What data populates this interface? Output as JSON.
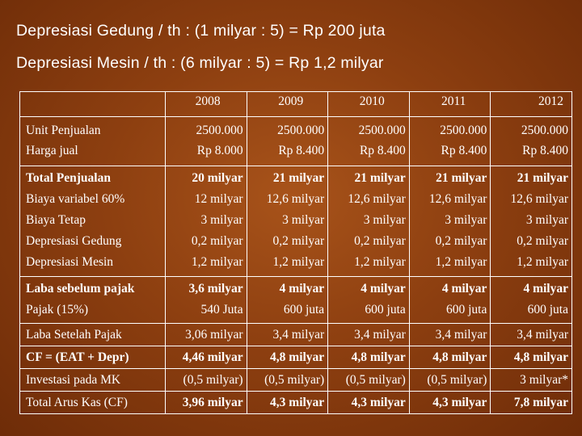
{
  "headings": {
    "line1": "Depresiasi Gedung / th :  (1 milyar : 5) = Rp 200 juta",
    "line2": "Depresiasi Mesin / th : (6 milyar : 5) = Rp 1,2 milyar"
  },
  "table": {
    "years": [
      "2008",
      "2009",
      "2010",
      "2011",
      "2012"
    ],
    "unit_row": {
      "labels": [
        "Unit Penjualan",
        "Harga jual"
      ],
      "values": [
        [
          "2500.000",
          "Rp 8.000"
        ],
        [
          "2500.000",
          "Rp 8.400"
        ],
        [
          "2500.000",
          "Rp 8.400"
        ],
        [
          "2500.000",
          "Rp 8.400"
        ],
        [
          "2500.000",
          "Rp 8.400"
        ]
      ]
    },
    "total_row": {
      "labels": [
        "Total Penjualan",
        "Biaya variabel 60%",
        "Biaya Tetap",
        "Depresiasi Gedung",
        "Depresiasi Mesin"
      ],
      "values": [
        [
          "20 milyar",
          "12 milyar",
          "3 milyar",
          "0,2 milyar",
          "1,2 milyar"
        ],
        [
          "21 milyar",
          "12,6 milyar",
          "3 milyar",
          "0,2 milyar",
          "1,2 milyar"
        ],
        [
          "21 milyar",
          "12,6 milyar",
          "3 milyar",
          "0,2 milyar",
          "1,2 milyar"
        ],
        [
          "21 milyar",
          "12,6 milyar",
          "3 milyar",
          "0,2 milyar",
          "1,2 milyar"
        ],
        [
          "21 milyar",
          "12,6 milyar",
          "3 milyar",
          "0,2 milyar",
          "1,2 milyar"
        ]
      ]
    },
    "laba_row": {
      "labels": [
        "Laba sebelum pajak",
        "Pajak (15%)"
      ],
      "values": [
        [
          "3,6 milyar",
          "540 Juta"
        ],
        [
          "4 milyar",
          "600 juta"
        ],
        [
          "4 milyar",
          "600 juta"
        ],
        [
          "4 milyar",
          "600 juta"
        ],
        [
          "4 milyar",
          "600 juta"
        ]
      ]
    },
    "single_rows": [
      {
        "label": "Laba Setelah Pajak",
        "bold": false,
        "values": [
          "3,06 milyar",
          "3,4 milyar",
          "3,4 milyar",
          "3,4 milyar",
          "3,4 milyar"
        ]
      },
      {
        "label": "CF = (EAT + Depr)",
        "bold": true,
        "values": [
          "4,46 milyar",
          "4,8 milyar",
          "4,8 milyar",
          "4,8 milyar",
          "4,8 milyar"
        ]
      },
      {
        "label": "Investasi pada MK",
        "bold": false,
        "values": [
          "(0,5 milyar)",
          "(0,5 milyar)",
          "(0,5 milyar)",
          "(0,5 milyar)",
          "3 milyar*"
        ]
      },
      {
        "label": "Total Arus Kas (CF)",
        "bold": true,
        "values": [
          "3,96 milyar",
          "4,3 milyar",
          "4,3 milyar",
          "4,3 milyar",
          "7,8 milyar"
        ]
      }
    ]
  }
}
